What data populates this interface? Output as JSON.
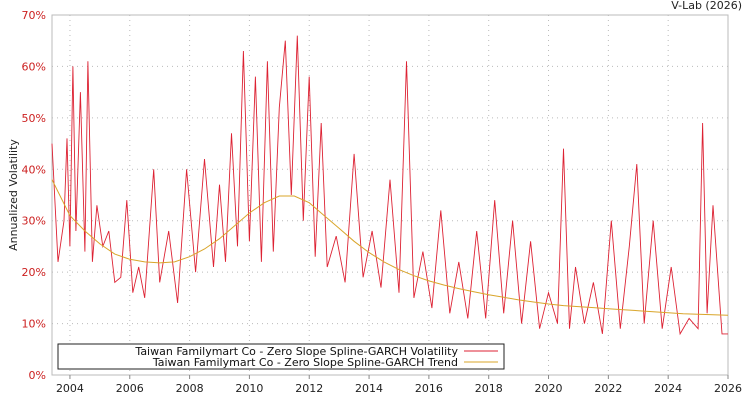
{
  "chart_data": {
    "type": "line",
    "title": "",
    "credit": "V-Lab (2026)",
    "xlabel": "",
    "ylabel": "Annualized Volatility",
    "xlim": [
      2003.4,
      2026.0
    ],
    "ylim": [
      0,
      70
    ],
    "grid": true,
    "legend_position": "bottom-left",
    "y_ticks": [
      "0%",
      "10%",
      "20%",
      "30%",
      "40%",
      "50%",
      "60%",
      "70%"
    ],
    "x_ticks": [
      "2004",
      "2006",
      "2008",
      "2010",
      "2012",
      "2014",
      "2016",
      "2018",
      "2020",
      "2022",
      "2024",
      "2026"
    ],
    "series": [
      {
        "name": "Taiwan Familymart Co - Zero Slope Spline-GARCH Volatility",
        "color": "#dd2233",
        "x": [
          2003.4,
          2003.6,
          2003.8,
          2003.9,
          2004.0,
          2004.1,
          2004.2,
          2004.35,
          2004.5,
          2004.6,
          2004.75,
          2004.9,
          2005.1,
          2005.3,
          2005.5,
          2005.7,
          2005.9,
          2006.1,
          2006.3,
          2006.5,
          2006.8,
          2007.0,
          2007.3,
          2007.6,
          2007.9,
          2008.2,
          2008.5,
          2008.8,
          2009.0,
          2009.2,
          2009.4,
          2009.6,
          2009.8,
          2010.0,
          2010.2,
          2010.4,
          2010.6,
          2010.8,
          2011.0,
          2011.2,
          2011.4,
          2011.6,
          2011.8,
          2012.0,
          2012.2,
          2012.4,
          2012.6,
          2012.9,
          2013.2,
          2013.5,
          2013.8,
          2014.1,
          2014.4,
          2014.7,
          2015.0,
          2015.25,
          2015.5,
          2015.8,
          2016.1,
          2016.4,
          2016.7,
          2017.0,
          2017.3,
          2017.6,
          2017.9,
          2018.2,
          2018.5,
          2018.8,
          2019.1,
          2019.4,
          2019.7,
          2020.0,
          2020.3,
          2020.5,
          2020.7,
          2020.9,
          2021.2,
          2021.5,
          2021.8,
          2022.1,
          2022.4,
          2022.7,
          2022.95,
          2023.2,
          2023.5,
          2023.8,
          2024.1,
          2024.4,
          2024.7,
          2025.0,
          2025.15,
          2025.3,
          2025.5,
          2025.8,
          2026.0
        ],
        "values": [
          45,
          22,
          30,
          46,
          25,
          60,
          28,
          55,
          24,
          61,
          22,
          33,
          25,
          28,
          18,
          19,
          34,
          16,
          21,
          15,
          40,
          18,
          28,
          14,
          40,
          20,
          42,
          21,
          37,
          22,
          47,
          25,
          63,
          26,
          58,
          22,
          61,
          24,
          52,
          65,
          35,
          66,
          30,
          58,
          23,
          49,
          21,
          27,
          18,
          43,
          19,
          28,
          17,
          38,
          16,
          61,
          15,
          24,
          13,
          32,
          12,
          22,
          11,
          28,
          11,
          34,
          12,
          30,
          10,
          26,
          9,
          16,
          10,
          44,
          9,
          21,
          10,
          18,
          8,
          30,
          9,
          25,
          41,
          10,
          30,
          9,
          21,
          8,
          11,
          9,
          49,
          12,
          33,
          8,
          8
        ]
      },
      {
        "name": "Taiwan Familymart Co - Zero Slope Spline-GARCH Trend",
        "color": "#d9a52a",
        "x": [
          2003.4,
          2004.0,
          2004.5,
          2005.0,
          2005.5,
          2006.0,
          2006.5,
          2007.0,
          2007.5,
          2008.0,
          2008.5,
          2009.0,
          2009.5,
          2010.0,
          2010.5,
          2011.0,
          2011.5,
          2012.0,
          2012.5,
          2013.0,
          2013.5,
          2014.0,
          2014.5,
          2015.0,
          2015.5,
          2016.0,
          2016.5,
          2017.0,
          2017.5,
          2018.0,
          2018.5,
          2019.0,
          2019.5,
          2020.0,
          2020.5,
          2021.0,
          2021.5,
          2022.0,
          2022.5,
          2023.0,
          2023.5,
          2024.0,
          2024.5,
          2025.0,
          2025.5,
          2026.0
        ],
        "values": [
          38,
          31,
          28,
          25.5,
          23.5,
          22.5,
          22,
          21.8,
          22,
          23,
          24.5,
          26.5,
          29,
          31.5,
          33.5,
          34.8,
          34.8,
          33.5,
          31,
          28.5,
          26,
          23.8,
          22,
          20.5,
          19.3,
          18.3,
          17.5,
          16.8,
          16.2,
          15.6,
          15.1,
          14.6,
          14.2,
          13.8,
          13.5,
          13.3,
          13.1,
          12.9,
          12.7,
          12.5,
          12.3,
          12.1,
          11.9,
          11.8,
          11.7,
          11.6
        ]
      }
    ]
  }
}
